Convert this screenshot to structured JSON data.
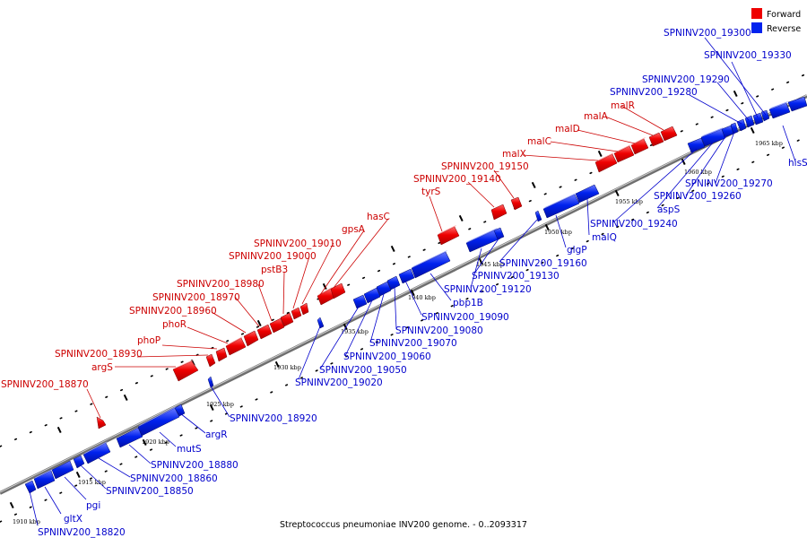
{
  "legend": {
    "forward_label": "Forward",
    "reverse_label": "Reverse",
    "forward_color": "#ee0000",
    "reverse_color": "#0022ee"
  },
  "caption": "Streptococcus pneumoniae INV200 genome. - 0..2093317",
  "ticks": [
    "1910 kbp",
    "1915 kbp",
    "1920 kbp",
    "1925 kbp",
    "1930 kbp",
    "1935 kbp",
    "1940 kbp",
    "1945 kbp",
    "1950 kbp",
    "1955 kbp",
    "1960 kbp",
    "1965 kbp"
  ],
  "forward_labels": [
    "SPNINV200_18870",
    "argS",
    "SPNINV200_18930",
    "phoP",
    "phoR",
    "SPNINV200_18960",
    "SPNINV200_18970",
    "SPNINV200_18980",
    "pstB3",
    "SPNINV200_19000",
    "SPNINV200_19010",
    "gpsA",
    "hasC",
    "tyrS",
    "SPNINV200_19140",
    "SPNINV200_19150",
    "malX",
    "malC",
    "malD",
    "malA",
    "malR"
  ],
  "reverse_labels": [
    "SPNINV200_18820",
    "gltX",
    "pgi",
    "SPNINV200_18850",
    "SPNINV200_18860",
    "SPNINV200_18880",
    "mutS",
    "argR",
    "SPNINV200_18920",
    "SPNINV200_19020",
    "SPNINV200_19050",
    "SPNINV200_19060",
    "SPNINV200_19070",
    "SPNINV200_19080",
    "SPNINV200_19090",
    "pbp1B",
    "SPNINV200_19120",
    "SPNINV200_19130",
    "SPNINV200_19160",
    "glgP",
    "malQ",
    "SPNINV200_19240",
    "aspS",
    "SPNINV200_19260",
    "SPNINV200_19270",
    "hisS",
    "SPNINV200_19280",
    "SPNINV200_19290",
    "SPNINV200_19330",
    "SPNINV200_19300"
  ]
}
